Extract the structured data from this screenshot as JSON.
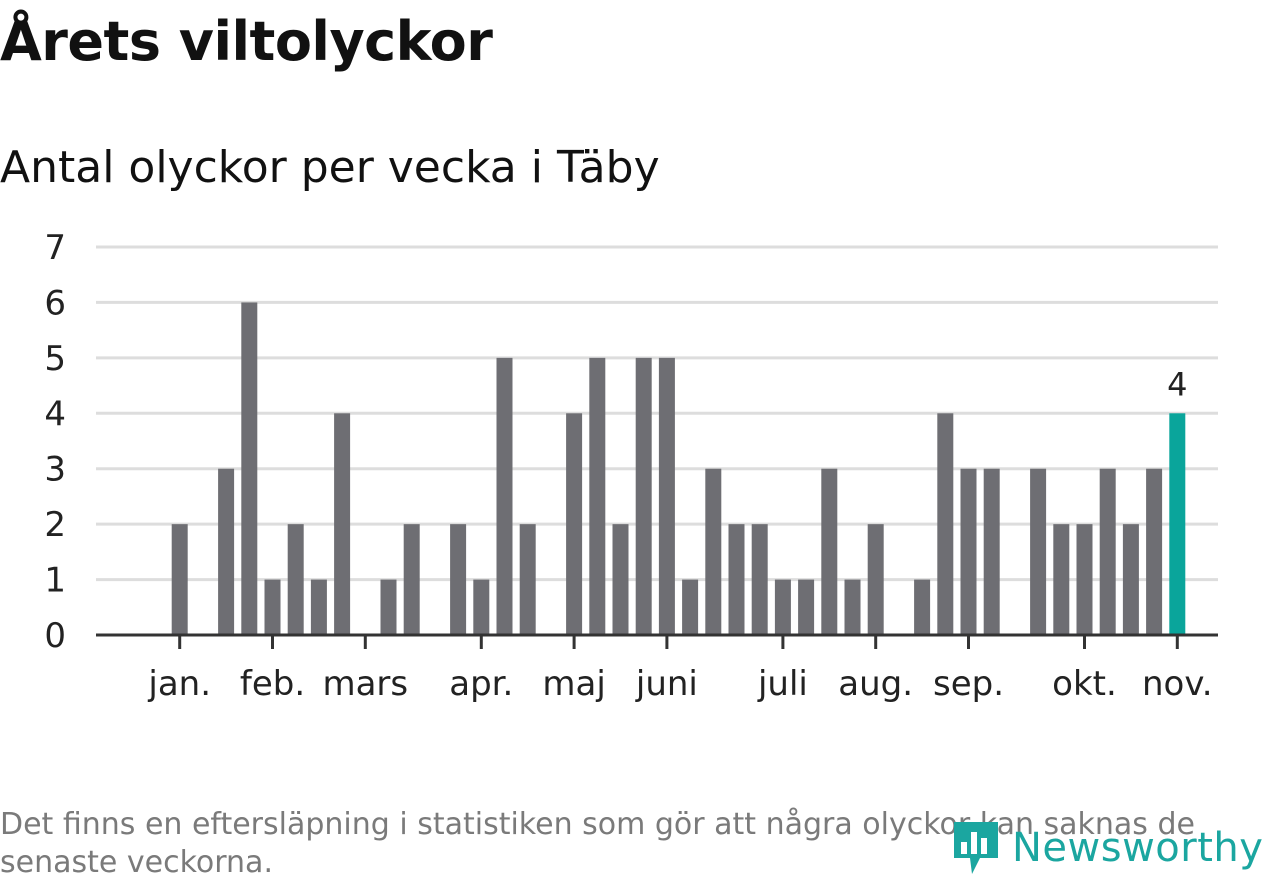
{
  "title": "Årets viltolyckor",
  "subtitle": "Antal olyckor per vecka i Täby",
  "footnote": "Det finns en eftersläpning i statistiken som gör att några olyckor kan saknas de senaste veckorna.",
  "logo": {
    "text": "Newsworthy",
    "icon": "newsworthy-logo-icon",
    "color": "#1ba6a0"
  },
  "colors": {
    "bar": "#6e6e73",
    "highlight": "#0aa59b",
    "grid": "#dddddd",
    "axis": "#333333"
  },
  "chart_data": {
    "type": "bar",
    "title": "Antal olyckor per vecka i Täby",
    "xlabel": "",
    "ylabel": "",
    "ylim": [
      0,
      7
    ],
    "yticks": [
      "0",
      "1",
      "2",
      "3",
      "4",
      "5",
      "6",
      "7"
    ],
    "grid": true,
    "x_start_week": 1,
    "values": [
      0,
      2,
      0,
      3,
      6,
      1,
      2,
      1,
      4,
      0,
      1,
      2,
      0,
      2,
      1,
      5,
      2,
      0,
      4,
      5,
      2,
      5,
      5,
      1,
      3,
      2,
      2,
      1,
      1,
      3,
      1,
      2,
      0,
      1,
      4,
      3,
      3,
      0,
      3,
      2,
      2,
      3,
      2,
      3,
      4
    ],
    "highlight_index": 44,
    "highlight_label": "4",
    "month_ticks": [
      {
        "label": "jan.",
        "week": 2
      },
      {
        "label": "feb.",
        "week": 6
      },
      {
        "label": "mars",
        "week": 10
      },
      {
        "label": "apr.",
        "week": 15
      },
      {
        "label": "maj",
        "week": 19
      },
      {
        "label": "juni",
        "week": 23
      },
      {
        "label": "juli",
        "week": 28
      },
      {
        "label": "aug.",
        "week": 32
      },
      {
        "label": "sep.",
        "week": 36
      },
      {
        "label": "okt.",
        "week": 41
      },
      {
        "label": "nov.",
        "week": 45
      }
    ]
  }
}
